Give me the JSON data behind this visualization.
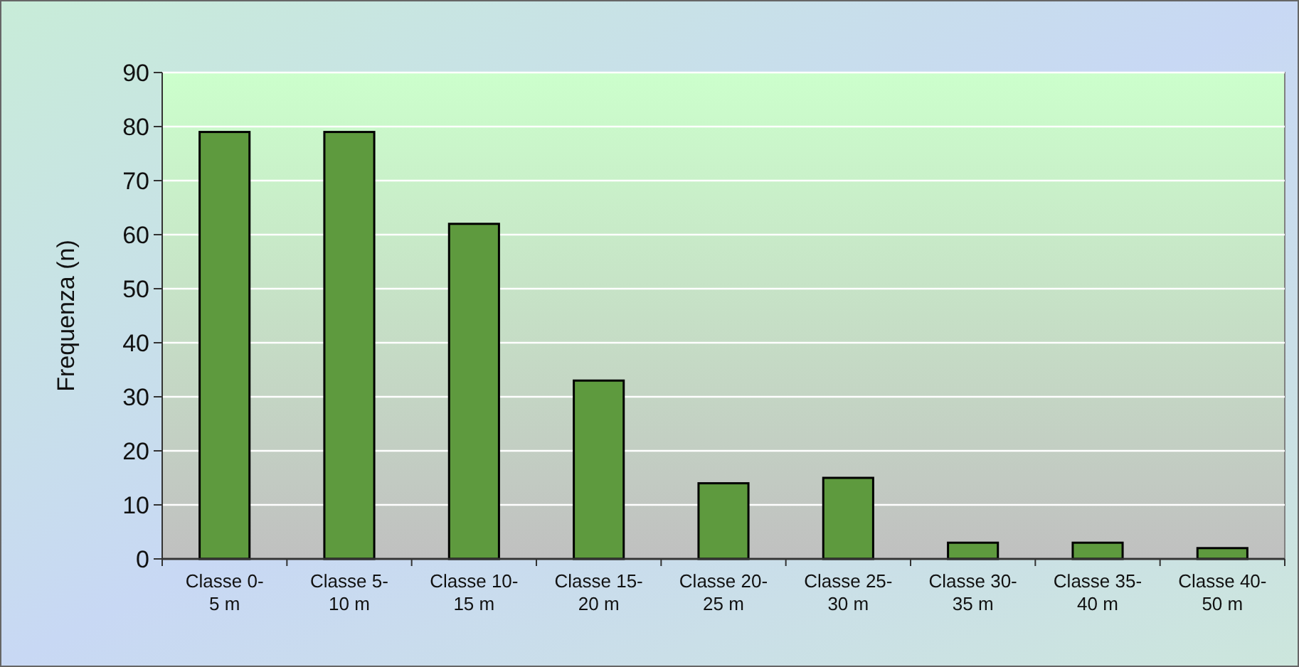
{
  "chart_data": {
    "type": "bar",
    "ylabel": "Frequenza (n)",
    "categories": [
      "Classe 0-5 m",
      "Classe 5-10 m",
      "Classe 10-15 m",
      "Classe 15-20 m",
      "Classe 20-25 m",
      "Classe 25-30 m",
      "Classe 30-35 m",
      "Classe 35-40 m",
      "Classe 40-50 m"
    ],
    "values": [
      79,
      79,
      62,
      33,
      14,
      15,
      3,
      3,
      2
    ],
    "color": "#5e9a3e",
    "ylim": [
      0,
      90
    ],
    "yticks": [
      0,
      10,
      20,
      30,
      40,
      50,
      60,
      70,
      80,
      90
    ],
    "grid": "y"
  }
}
